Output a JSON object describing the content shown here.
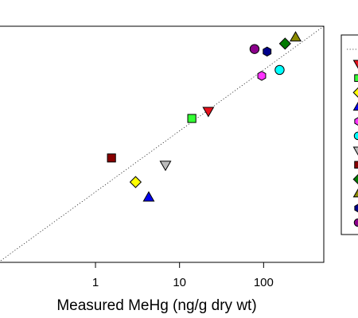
{
  "chart_data": {
    "type": "scatter",
    "xlabel": "Measured MeHg (ng/g dry wt)",
    "ylabel": "",
    "xscale": "log",
    "yscale": "log",
    "xlim": [
      0.07,
      520
    ],
    "ylim": [
      0.07,
      520
    ],
    "xticks": [
      {
        "value": 1,
        "label": "1"
      },
      {
        "value": 10,
        "label": "10"
      },
      {
        "value": 100,
        "label": "100"
      }
    ],
    "one_to_one_line": true,
    "grid": false,
    "legend_position": "right (cropped)",
    "points": [
      {
        "x": 22,
        "y": 21,
        "marker": "triangle-down",
        "color": "#e8111c"
      },
      {
        "x": 14,
        "y": 16,
        "marker": "square",
        "color": "#33ff33"
      },
      {
        "x": 3.0,
        "y": 1.45,
        "marker": "diamond",
        "color": "#ffff00"
      },
      {
        "x": 4.3,
        "y": 0.82,
        "marker": "triangle-up",
        "color": "#0000ee"
      },
      {
        "x": 95,
        "y": 80,
        "marker": "hexagon",
        "color": "#ff33ff"
      },
      {
        "x": 155,
        "y": 100,
        "marker": "circle",
        "color": "#00ffff"
      },
      {
        "x": 6.8,
        "y": 2.75,
        "marker": "triangle-down",
        "color": "#bbbbbb"
      },
      {
        "x": 1.55,
        "y": 3.6,
        "marker": "square",
        "color": "#880000"
      },
      {
        "x": 180,
        "y": 270,
        "marker": "diamond",
        "color": "#007a00"
      },
      {
        "x": 240,
        "y": 345,
        "marker": "triangle-up",
        "color": "#8a8a00"
      },
      {
        "x": 110,
        "y": 200,
        "marker": "hexagon",
        "color": "#00008b"
      },
      {
        "x": 78,
        "y": 220,
        "marker": "circle",
        "color": "#8b008b"
      }
    ],
    "legend_markers": [
      {
        "marker": "triangle-down",
        "color": "#e8111c"
      },
      {
        "marker": "square",
        "color": "#33ff33"
      },
      {
        "marker": "diamond",
        "color": "#ffff00"
      },
      {
        "marker": "triangle-up",
        "color": "#0000ee"
      },
      {
        "marker": "hexagon",
        "color": "#ff33ff"
      },
      {
        "marker": "circle",
        "color": "#00ffff"
      },
      {
        "marker": "triangle-down",
        "color": "#bbbbbb"
      },
      {
        "marker": "square",
        "color": "#880000"
      },
      {
        "marker": "diamond",
        "color": "#007a00"
      },
      {
        "marker": "triangle-up",
        "color": "#8a8a00"
      },
      {
        "marker": "hexagon",
        "color": "#00008b"
      },
      {
        "marker": "circle",
        "color": "#8b008b"
      }
    ]
  }
}
